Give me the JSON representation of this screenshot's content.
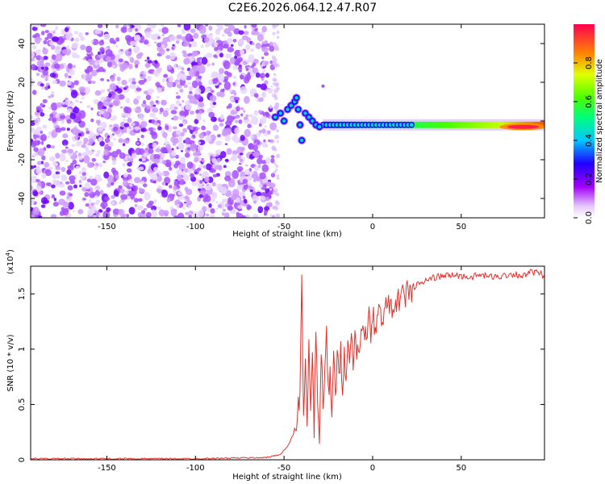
{
  "title": "C2E6.2026.064.12.47.R07",
  "chart_data": [
    {
      "type": "heatmap",
      "xlabel": "Height of straight line (km)",
      "ylabel": "Frequency (Hz)",
      "xlim": [
        -193,
        97
      ],
      "ylim": [
        -50,
        50
      ],
      "x_ticks": [
        -150,
        -100,
        -50,
        0,
        50
      ],
      "y_ticks": [
        -40,
        -20,
        0,
        20,
        40
      ],
      "colorbar": {
        "label": "Normalized spectral amplitude",
        "range": [
          0,
          1
        ],
        "ticks": [
          0.0,
          0.2,
          0.4,
          0.6,
          0.8
        ]
      },
      "features": [
        {
          "region": "noise",
          "x_range": [
            -193,
            -56
          ],
          "y_range": [
            -50,
            50
          ],
          "amplitude": 0.05
        },
        {
          "region": "transition",
          "x_range": [
            -56,
            -28
          ],
          "y_center": 2,
          "amplitude": 0.3
        },
        {
          "region": "carrier",
          "x_range": [
            -28,
            97
          ],
          "y_center": -2,
          "amplitude": 0.8
        },
        {
          "region": "peak",
          "x_range": [
            70,
            97
          ],
          "y_center": -3,
          "amplitude": 0.98
        }
      ]
    },
    {
      "type": "line",
      "xlabel": "Height of straight line (km)",
      "ylabel": "SNR (10 * v/v)",
      "y_multiplier": "(x10",
      "y_multiplier_exp": "4",
      "xlim": [
        -193,
        97
      ],
      "ylim": [
        0,
        1.75
      ],
      "x_ticks": [
        -150,
        -100,
        -50,
        0,
        50
      ],
      "y_ticks": [
        0.0,
        0.5,
        1.0,
        1.5
      ],
      "series_color": "#e8302a",
      "series": [
        {
          "x": [
            -193,
            -150,
            -100,
            -60,
            -52,
            -48,
            -45,
            -43,
            -41,
            -40,
            -39,
            -38,
            -37,
            -36,
            -35,
            -34,
            -33,
            -32,
            -31,
            -30,
            -29,
            -28,
            -27,
            -26,
            -25,
            -24,
            -23,
            -22,
            -21,
            -20,
            -19,
            -18,
            -17,
            -16,
            -15,
            -14,
            -13,
            -12,
            -11,
            -10,
            -9,
            -8,
            -7,
            -6,
            -5,
            -4,
            -3,
            -2,
            -1,
            0,
            2,
            4,
            6,
            8,
            10,
            12,
            14,
            16,
            18,
            20,
            22,
            25,
            28,
            30,
            35,
            40,
            45,
            50,
            55,
            60,
            65,
            70,
            75,
            80,
            85,
            90,
            95,
            97
          ],
          "y": [
            0.01,
            0.01,
            0.01,
            0.02,
            0.05,
            0.12,
            0.22,
            0.35,
            0.6,
            1.65,
            0.45,
            0.9,
            0.3,
            1.05,
            0.4,
            0.95,
            0.2,
            1.2,
            0.5,
            0.15,
            1.0,
            0.55,
            0.7,
            1.1,
            0.6,
            0.8,
            0.35,
            0.95,
            0.55,
            0.9,
            0.75,
            1.0,
            0.7,
            0.95,
            0.8,
            1.05,
            0.85,
            1.1,
            0.9,
            1.15,
            0.95,
            1.1,
            1.0,
            1.2,
            1.05,
            1.25,
            1.1,
            1.3,
            1.15,
            1.3,
            1.2,
            1.35,
            1.3,
            1.4,
            1.35,
            1.45,
            1.4,
            1.5,
            1.45,
            1.55,
            1.52,
            1.58,
            1.6,
            1.62,
            1.65,
            1.66,
            1.67,
            1.66,
            1.65,
            1.67,
            1.66,
            1.65,
            1.67,
            1.68,
            1.66,
            1.7,
            1.68,
            1.65
          ]
        }
      ]
    }
  ]
}
